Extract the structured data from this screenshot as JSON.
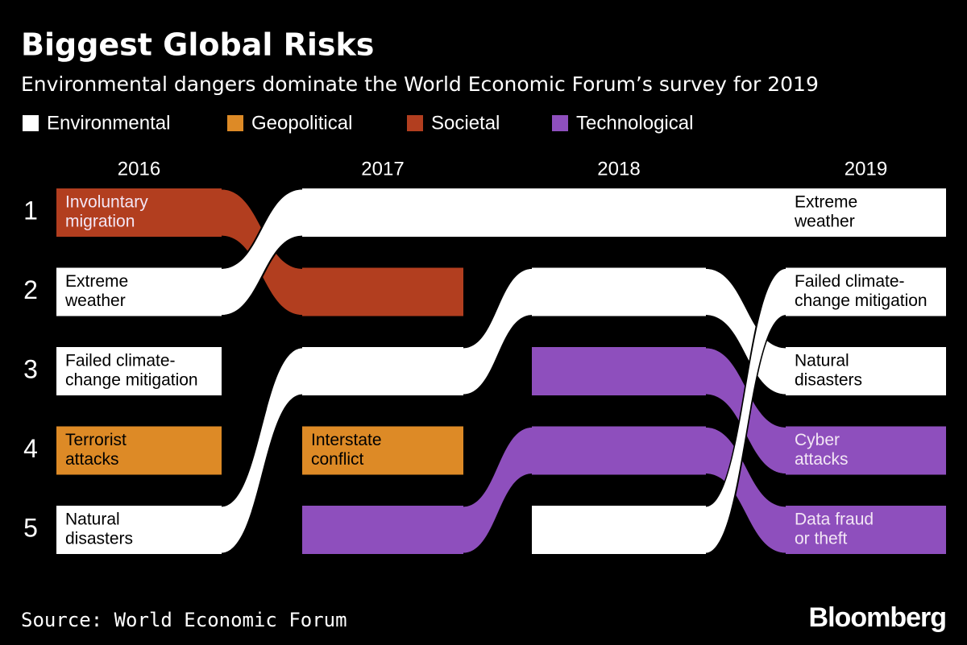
{
  "title": "Biggest Global Risks",
  "subtitle": "Environmental dangers dominate the World Economic Forum’s survey for 2019",
  "legend": [
    {
      "name": "Environmental",
      "color": "#ffffff"
    },
    {
      "name": "Geopolitical",
      "color": "#dd8a26"
    },
    {
      "name": "Societal",
      "color": "#b23e1f"
    },
    {
      "name": "Technological",
      "color": "#8e4fbd"
    }
  ],
  "years": [
    "2016",
    "2017",
    "2018",
    "2019"
  ],
  "ranks": [
    "1",
    "2",
    "3",
    "4",
    "5"
  ],
  "risks": [
    {
      "label_lines": [
        "Involuntary",
        "migration"
      ],
      "category": 2,
      "ranks": [
        1,
        2,
        null,
        null
      ],
      "label_years": [
        0
      ]
    },
    {
      "label_lines": [
        "Terrorist",
        "attacks"
      ],
      "category": 1,
      "ranks": [
        4,
        null,
        null,
        null
      ],
      "label_years": [
        0
      ]
    },
    {
      "label_lines": [
        "Interstate",
        "conflict"
      ],
      "category": 1,
      "ranks": [
        null,
        4,
        null,
        null
      ],
      "label_years": [
        1
      ]
    },
    {
      "label_lines": [
        "Data fraud",
        "or theft"
      ],
      "category": 3,
      "ranks": [
        null,
        5,
        4,
        5
      ],
      "label_years": [
        3
      ]
    },
    {
      "label_lines": [
        "Cyber",
        "attacks"
      ],
      "category": 3,
      "ranks": [
        null,
        null,
        3,
        4
      ],
      "label_years": [
        3
      ]
    },
    {
      "label_lines": [
        "Natural",
        "disasters"
      ],
      "category": 0,
      "ranks": [
        5,
        3,
        2,
        3
      ],
      "label_years": [
        0,
        3
      ]
    },
    {
      "label_lines": [
        "Failed climate-",
        "change mitigation"
      ],
      "category": 0,
      "ranks": [
        3,
        null,
        5,
        2
      ],
      "label_years": [
        0,
        3
      ]
    },
    {
      "label_lines": [
        "Extreme",
        "weather"
      ],
      "category": 0,
      "ranks": [
        2,
        1,
        1,
        1
      ],
      "label_years": [
        0,
        3
      ]
    }
  ],
  "source": "Source: World Economic Forum",
  "brand": "Bloomberg"
}
